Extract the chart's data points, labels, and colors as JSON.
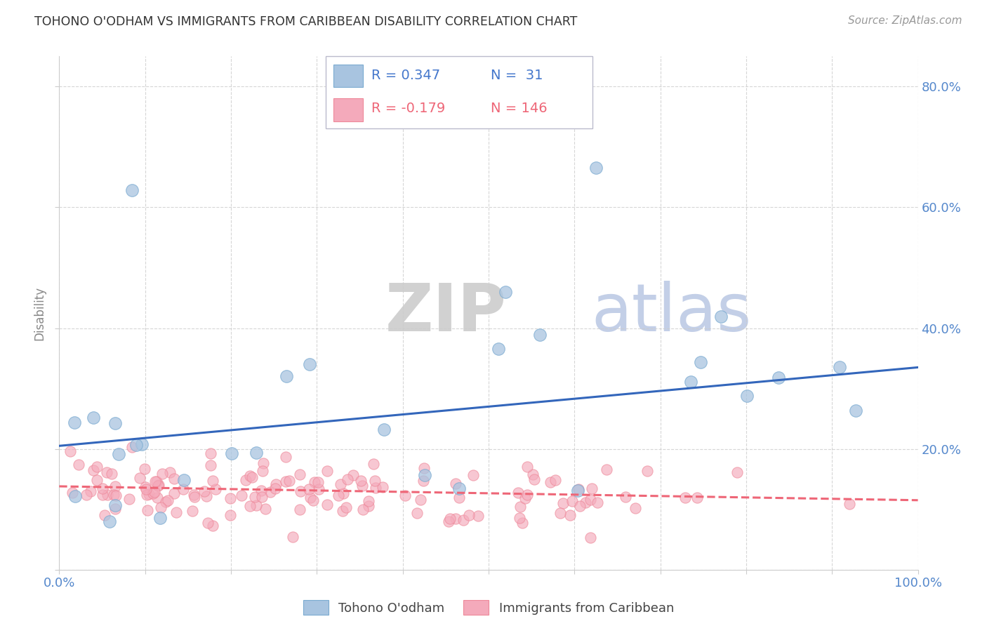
{
  "title": "TOHONO O'ODHAM VS IMMIGRANTS FROM CARIBBEAN DISABILITY CORRELATION CHART",
  "source": "Source: ZipAtlas.com",
  "ylabel": "Disability",
  "xlim": [
    0.0,
    1.0
  ],
  "ylim": [
    0.0,
    0.85
  ],
  "legend1_R": "0.347",
  "legend1_N": "31",
  "legend2_R": "-0.179",
  "legend2_N": "146",
  "blue_scatter_color": "#A8C4E0",
  "blue_edge_color": "#7AAAD0",
  "pink_scatter_color": "#F4AABB",
  "pink_edge_color": "#EE8899",
  "blue_line_color": "#3366BB",
  "pink_line_color": "#EE6677",
  "legend_blue_fill": "#A8C4E0",
  "legend_pink_fill": "#F4AABB",
  "legend_text_blue": "#4477CC",
  "legend_text_pink": "#EE6677",
  "axis_tick_color": "#5588CC",
  "ylabel_color": "#888888",
  "title_color": "#333333",
  "source_color": "#999999",
  "grid_color": "#CCCCCC",
  "watermark_ZIP_color": "#CCCCCC",
  "watermark_atlas_color": "#AABBDD",
  "background_color": "#FFFFFF",
  "blue_line_x0": 0.0,
  "blue_line_y0": 0.205,
  "blue_line_x1": 1.0,
  "blue_line_y1": 0.335,
  "pink_line_x0": 0.0,
  "pink_line_y0": 0.138,
  "pink_line_x1": 1.0,
  "pink_line_y1": 0.115
}
